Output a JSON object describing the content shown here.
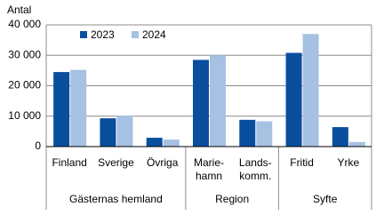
{
  "chart_data": {
    "type": "bar",
    "y_label": "Antal",
    "groups": [
      {
        "label": "Gästernas hemland",
        "categories": [
          "Finland",
          "Sverige",
          "Övriga"
        ]
      },
      {
        "label": "Region",
        "categories": [
          "Marie-\nhamn",
          "Lands-\nkomm."
        ]
      },
      {
        "label": "Syfte",
        "categories": [
          "Fritid",
          "Yrke"
        ]
      }
    ],
    "series": [
      {
        "name": "2023",
        "color": "#0a4f9e",
        "values": [
          24500,
          9300,
          2900,
          28500,
          8800,
          30800,
          6400
        ]
      },
      {
        "name": "2024",
        "color": "#a6c1e2",
        "values": [
          25200,
          10200,
          2300,
          30000,
          8300,
          37000,
          1500
        ]
      }
    ],
    "ylim": [
      0,
      40000
    ],
    "yticks": [
      0,
      {
        "value": 10000,
        "label": "10 000"
      },
      {
        "value": 20000,
        "label": "20 000"
      },
      {
        "value": 30000,
        "label": "30 000"
      },
      {
        "value": 40000,
        "label": "40 000"
      }
    ],
    "grid": true,
    "legend": "top-left"
  }
}
